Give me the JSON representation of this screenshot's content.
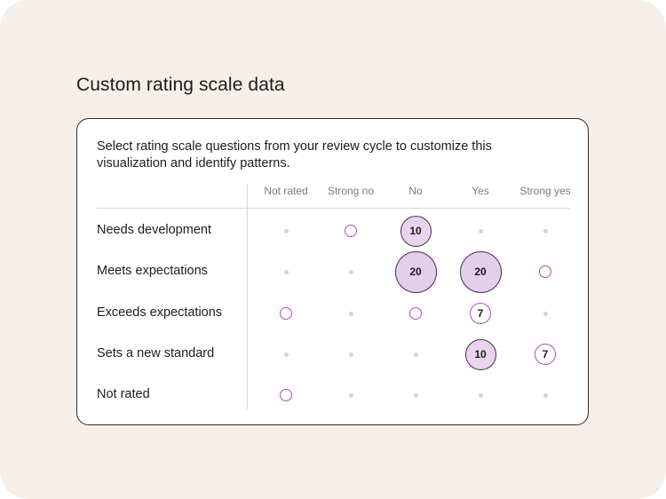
{
  "title": "Custom rating scale data",
  "card": {
    "description": "Select rating scale questions from your review cycle to customize this visualization and identify patterns.",
    "columns": [
      "Not rated",
      "Strong no",
      "No",
      "Yes",
      "Strong yes"
    ],
    "rows": [
      {
        "label": "Needs development",
        "cells": [
          {
            "kind": "dot",
            "value": ""
          },
          {
            "kind": "ring",
            "value": ""
          },
          {
            "kind": "mid",
            "value": "10"
          },
          {
            "kind": "dot",
            "value": ""
          },
          {
            "kind": "dot",
            "value": ""
          }
        ]
      },
      {
        "label": "Meets expectations",
        "cells": [
          {
            "kind": "dot",
            "value": ""
          },
          {
            "kind": "dot",
            "value": ""
          },
          {
            "kind": "large",
            "value": "20"
          },
          {
            "kind": "large",
            "value": "20"
          },
          {
            "kind": "ring",
            "value": ""
          }
        ]
      },
      {
        "label": "Exceeds expectations",
        "cells": [
          {
            "kind": "ring",
            "value": ""
          },
          {
            "kind": "dot",
            "value": ""
          },
          {
            "kind": "ring",
            "value": ""
          },
          {
            "kind": "small",
            "value": "7"
          },
          {
            "kind": "dot",
            "value": ""
          }
        ]
      },
      {
        "label": "Sets a new standard",
        "cells": [
          {
            "kind": "dot",
            "value": ""
          },
          {
            "kind": "dot",
            "value": ""
          },
          {
            "kind": "dot",
            "value": ""
          },
          {
            "kind": "mid",
            "value": "10"
          },
          {
            "kind": "small",
            "value": "7"
          }
        ]
      },
      {
        "label": "Not rated",
        "cells": [
          {
            "kind": "ring",
            "value": ""
          },
          {
            "kind": "dot",
            "value": ""
          },
          {
            "kind": "dot",
            "value": ""
          },
          {
            "kind": "dot",
            "value": ""
          },
          {
            "kind": "dot",
            "value": ""
          }
        ]
      }
    ]
  },
  "colors": {
    "background": "#f6efe9",
    "card": "#ffffff",
    "bubble_fill": "#e4cfea",
    "bubble_border_dark": "#4a2a4e",
    "bubble_border_accent": "#b24dbd",
    "empty_dot": "#d4d4d4"
  }
}
